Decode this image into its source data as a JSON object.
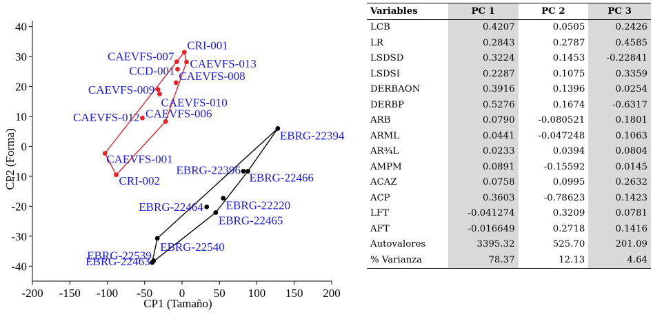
{
  "chart_data": {
    "type": "scatter",
    "xlabel": "CP1 (Tamaño)",
    "ylabel": "CP2 (Forma)",
    "xlim": [
      -200,
      200
    ],
    "ylim": [
      -45,
      42
    ],
    "xticks": [
      -200,
      -150,
      -100,
      -50,
      0,
      50,
      100,
      150,
      200
    ],
    "yticks": [
      -40,
      -30,
      -20,
      -10,
      0,
      10,
      20,
      30,
      40
    ],
    "grid": false,
    "series": [
      {
        "name": "red group",
        "color": "#e8202a",
        "hull": true,
        "points": [
          {
            "label": "CRI-001",
            "x": 3,
            "y": 31.5
          },
          {
            "label": "CAEVFS-007",
            "x": -7,
            "y": 28.3
          },
          {
            "label": "CAEVFS-013",
            "x": 6,
            "y": 28.2
          },
          {
            "label": "CCD-001",
            "x": -6,
            "y": 25.8
          },
          {
            "label": "CAEVFS-008",
            "x": -8,
            "y": 21.3
          },
          {
            "label": "CAEVFS-009",
            "x": -32,
            "y": 19
          },
          {
            "label": "CAEVFS-010",
            "x": -30,
            "y": 17.5
          },
          {
            "label": "CAEVFS-012",
            "x": -53,
            "y": 9.5
          },
          {
            "label": "CAEVFS-006",
            "x": -22,
            "y": 8.3
          },
          {
            "label": "CAEVFS-001",
            "x": -103,
            "y": -2.3
          },
          {
            "label": "CRI-002",
            "x": -88,
            "y": -9.5
          }
        ]
      },
      {
        "name": "black group",
        "color": "#000000",
        "hull": true,
        "points": [
          {
            "label": "EBRG-22394",
            "x": 128,
            "y": 6
          },
          {
            "label": "EBRG-22396",
            "x": 82,
            "y": -8.3
          },
          {
            "label": "EBRG-22466",
            "x": 88,
            "y": -8.3
          },
          {
            "label": "EBRG-22220",
            "x": 55,
            "y": -17.3
          },
          {
            "label": "EBRG-22464",
            "x": 33,
            "y": -20.2
          },
          {
            "label": "EBRG-22465",
            "x": 45,
            "y": -22.1
          },
          {
            "label": "EBRG-22540",
            "x": -33,
            "y": -30.7
          },
          {
            "label": "EBRG-22539",
            "x": -38,
            "y": -38.2
          },
          {
            "label": "EBRG-22463",
            "x": -40,
            "y": -38.8
          }
        ]
      }
    ]
  },
  "table": {
    "headers": [
      "Variables",
      "PC 1",
      "PC 2",
      "PC 3"
    ],
    "rows": [
      [
        "LCB",
        "0.4207",
        "0.0505",
        "0.2426"
      ],
      [
        "LR",
        "0.2843",
        "0.2787",
        "0.4585"
      ],
      [
        "LSDSD",
        "0.3224",
        "0.1453",
        "-0.22841"
      ],
      [
        "LSDSI",
        "0.2287",
        "0.1075",
        "0.3359"
      ],
      [
        "DERBAON",
        "0.3916",
        "0.1396",
        "0.0254"
      ],
      [
        "DERBP",
        "0.5276",
        "0.1674",
        "-0.6317"
      ],
      [
        "ARB",
        "0.0790",
        "-0.080521",
        "0.1801"
      ],
      [
        "ARML",
        "0.0441",
        "-0.047248",
        "0.1063"
      ],
      [
        "AR¾L",
        "0.0233",
        "0.0394",
        "0.0804"
      ],
      [
        "AMPM",
        "0.0891",
        "-0.15592",
        "0.0145"
      ],
      [
        "ACAZ",
        "0.0758",
        "0.0995",
        "0.2632"
      ],
      [
        "ACP",
        "0.3603",
        "-0.78623",
        "0.1423"
      ],
      [
        "LFT",
        "-0.041274",
        "0.3209",
        "0.0781"
      ],
      [
        "AFT",
        "-0.016649",
        "0.2718",
        "0.1416"
      ],
      [
        "Autovalores",
        "3395.32",
        "525.70",
        "201.09"
      ],
      [
        "% Varianza",
        "78.37",
        "12.13",
        "4.64"
      ]
    ]
  }
}
